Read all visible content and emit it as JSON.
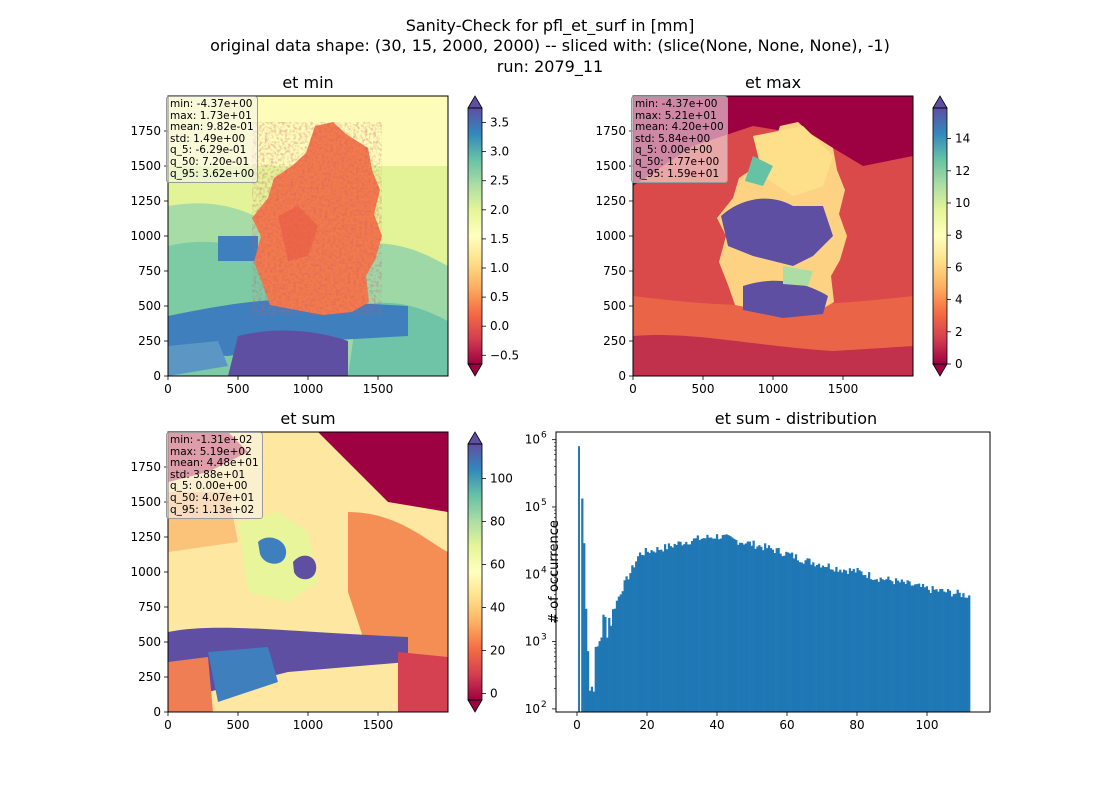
{
  "figure": {
    "title_lines": [
      "Sanity-Check for pfl_et_surf in [mm]",
      "original data shape: (30, 15, 2000, 2000) -- sliced with: (slice(None, None, None), -1)",
      "run: 2079_11"
    ]
  },
  "chart_data": [
    {
      "type": "heatmap",
      "title": "et min",
      "colormap": "Spectral",
      "xticks": [
        0,
        500,
        1000,
        1500
      ],
      "yticks": [
        0,
        250,
        500,
        750,
        1000,
        1250,
        1500,
        1750
      ],
      "xlim": [
        0,
        2000
      ],
      "ylim": [
        0,
        2000
      ],
      "colorbar_ticks": [
        -0.5,
        0.0,
        0.5,
        1.0,
        1.5,
        2.0,
        2.5,
        3.0,
        3.5
      ],
      "colorbar_tick_labels": [
        "−0.5",
        "0.0",
        "0.5",
        "1.0",
        "1.5",
        "2.0",
        "2.5",
        "3.0",
        "3.5"
      ],
      "colorbar_range": [
        -0.65,
        3.75
      ],
      "colorbar_extend": "both",
      "stats": [
        "min: -4.37e+00",
        "max: 1.73e+01",
        "mean: 9.82e-01",
        "std: 1.49e+00",
        "q_5: -6.29e-01",
        "q_50: 7.20e-01",
        "q_95: 3.62e+00"
      ]
    },
    {
      "type": "heatmap",
      "title": "et max",
      "colormap": "Spectral",
      "xticks": [
        0,
        500,
        1000,
        1500
      ],
      "yticks": [
        0,
        250,
        500,
        750,
        1000,
        1250,
        1500,
        1750
      ],
      "xlim": [
        0,
        2000
      ],
      "ylim": [
        0,
        2000
      ],
      "colorbar_ticks": [
        0,
        2,
        4,
        6,
        8,
        10,
        12,
        14
      ],
      "colorbar_tick_labels": [
        "0",
        "2",
        "4",
        "6",
        "8",
        "10",
        "12",
        "14"
      ],
      "colorbar_range": [
        0,
        15.9
      ],
      "colorbar_extend": "both",
      "stats": [
        "min: -4.37e+00",
        "max: 5.21e+01",
        "mean: 4.20e+00",
        "std: 5.84e+00",
        "q_5: 0.00e+00",
        "q_50: 1.77e+00",
        "q_95: 1.59e+01"
      ]
    },
    {
      "type": "heatmap",
      "title": "et sum",
      "colormap": "Spectral",
      "xticks": [
        0,
        500,
        1000,
        1500
      ],
      "yticks": [
        0,
        250,
        500,
        750,
        1000,
        1250,
        1500,
        1750
      ],
      "xlim": [
        0,
        2000
      ],
      "ylim": [
        0,
        2000
      ],
      "colorbar_ticks": [
        0,
        20,
        40,
        60,
        80,
        100
      ],
      "colorbar_tick_labels": [
        "0",
        "20",
        "40",
        "60",
        "80",
        "100"
      ],
      "colorbar_range": [
        -3,
        116
      ],
      "colorbar_extend": "both",
      "stats": [
        "min: -1.31e+02",
        "max: 5.19e+02",
        "mean: 4.48e+01",
        "std: 3.88e+01",
        "q_5: 0.00e+00",
        "q_50: 4.07e+01",
        "q_95: 1.13e+02"
      ]
    },
    {
      "type": "bar",
      "title": "et sum - distribution",
      "ylabel": "# of occurrence",
      "yscale": "log",
      "xlim": [
        -6,
        118
      ],
      "ylim": [
        90,
        1300000
      ],
      "xticks": [
        0,
        20,
        40,
        60,
        80,
        100
      ],
      "yticks": [
        100,
        1000,
        10000,
        100000,
        1000000
      ],
      "color": "#1f77b4",
      "x": [
        0.6,
        3.5,
        6.5,
        9.5,
        12.5,
        15.5,
        17.5,
        20,
        25,
        30,
        35,
        40,
        45,
        50,
        55,
        60,
        65,
        70,
        75,
        80,
        85,
        90,
        95,
        100,
        105,
        110,
        112
      ],
      "y": [
        800000,
        150,
        1500,
        2500,
        6000,
        12000,
        20000,
        22000,
        25000,
        30000,
        34000,
        37000,
        32000,
        28000,
        24000,
        20000,
        16000,
        14000,
        12000,
        11000,
        9000,
        8000,
        7000,
        6000,
        5500,
        5000,
        4800
      ]
    }
  ]
}
